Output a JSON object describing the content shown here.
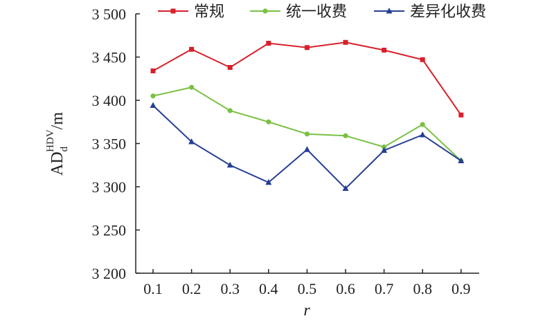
{
  "chart_data": {
    "type": "line",
    "x": [
      0.1,
      0.2,
      0.3,
      0.4,
      0.5,
      0.6,
      0.7,
      0.8,
      0.9
    ],
    "x_tick_labels": [
      "0.1",
      "0.2",
      "0.3",
      "0.4",
      "0.5",
      "0.6",
      "0.7",
      "0.8",
      "0.9"
    ],
    "y_tick_values": [
      3200,
      3250,
      3300,
      3350,
      3400,
      3450,
      3500
    ],
    "y_tick_labels": [
      "3 200",
      "3 250",
      "3 300",
      "3 350",
      "3 400",
      "3 450",
      "3 500"
    ],
    "ylim": [
      3200,
      3500
    ],
    "xlabel": "r",
    "ylabel": {
      "main": "AD",
      "subscript": "d",
      "superscript": "HDV",
      "unit": "/m"
    },
    "grid": false,
    "legend_position": "top",
    "series": [
      {
        "name": "常规",
        "color": "#d7202a",
        "marker": "square",
        "values": [
          3434,
          3459,
          3438,
          3466,
          3461,
          3467,
          3458,
          3447,
          3383
        ]
      },
      {
        "name": "统一收费",
        "color": "#7ac143",
        "marker": "circle",
        "values": [
          3405,
          3415,
          3388,
          3375,
          3361,
          3359,
          3346,
          3372,
          3330
        ]
      },
      {
        "name": "差异化收费",
        "color": "#253f94",
        "marker": "triangle",
        "values": [
          3394,
          3352,
          3325,
          3305,
          3343,
          3298,
          3342,
          3360,
          3330
        ]
      }
    ]
  }
}
